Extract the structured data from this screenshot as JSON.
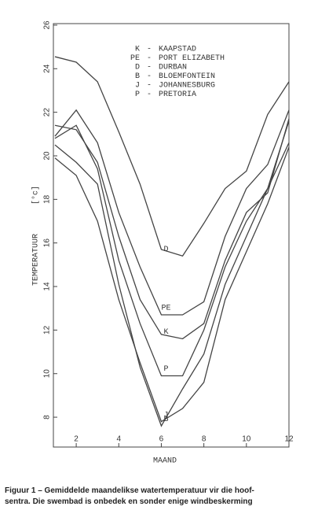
{
  "chart_data": {
    "type": "line",
    "x_label": "MAAND",
    "y_label": "TEMPERATUUR",
    "y_unit": "[°c]",
    "x": [
      1,
      2,
      3,
      4,
      5,
      6,
      7,
      8,
      9,
      10,
      11,
      12
    ],
    "xlim": [
      1,
      12
    ],
    "xticks": [
      2,
      4,
      6,
      8,
      10,
      12
    ],
    "ylim": [
      6.63,
      26.07
    ],
    "yticks": [
      8,
      10,
      12,
      14,
      16,
      18,
      20,
      22,
      24,
      26
    ],
    "color": "#444",
    "series": [
      {
        "label": "K",
        "name": "KAAPSTAD",
        "values": [
          21.4,
          21.2,
          19.7,
          16.3,
          13.4,
          11.8,
          11.6,
          12.3,
          15.2,
          17.4,
          18.3,
          21.7
        ]
      },
      {
        "label": "PE",
        "name": "PORT ELIZABETH",
        "values": [
          20.9,
          22.1,
          20.6,
          17.4,
          14.9,
          12.7,
          12.7,
          13.3,
          16.3,
          18.5,
          19.6,
          22.1
        ]
      },
      {
        "label": "D",
        "name": "DURBAN",
        "values": [
          24.55,
          24.3,
          23.4,
          21.1,
          18.7,
          15.7,
          15.4,
          16.9,
          18.5,
          19.3,
          21.9,
          23.4
        ]
      },
      {
        "label": "B",
        "name": "BLOEMFONTEIN",
        "values": [
          20.5,
          19.7,
          18.7,
          14.1,
          10.3,
          7.6,
          9.3,
          10.9,
          14.1,
          16.3,
          18.5,
          21.6
        ]
      },
      {
        "label": "J",
        "name": "JOHANNESBURG",
        "values": [
          19.9,
          19.1,
          17.0,
          13.4,
          10.5,
          7.8,
          8.4,
          9.6,
          13.4,
          15.6,
          17.8,
          20.4
        ]
      },
      {
        "label": "P",
        "name": "PRETORIA",
        "values": [
          20.8,
          21.4,
          19.4,
          15.2,
          12.3,
          9.9,
          9.9,
          12.0,
          14.9,
          17.0,
          18.5,
          20.6
        ]
      }
    ]
  },
  "caption": [
    "Figuur 1 – Gemiddelde maandelikse watertemperatuur vir die hoof-",
    "sentra. Die swembad is onbedek en sonder enige windbeskerming"
  ]
}
